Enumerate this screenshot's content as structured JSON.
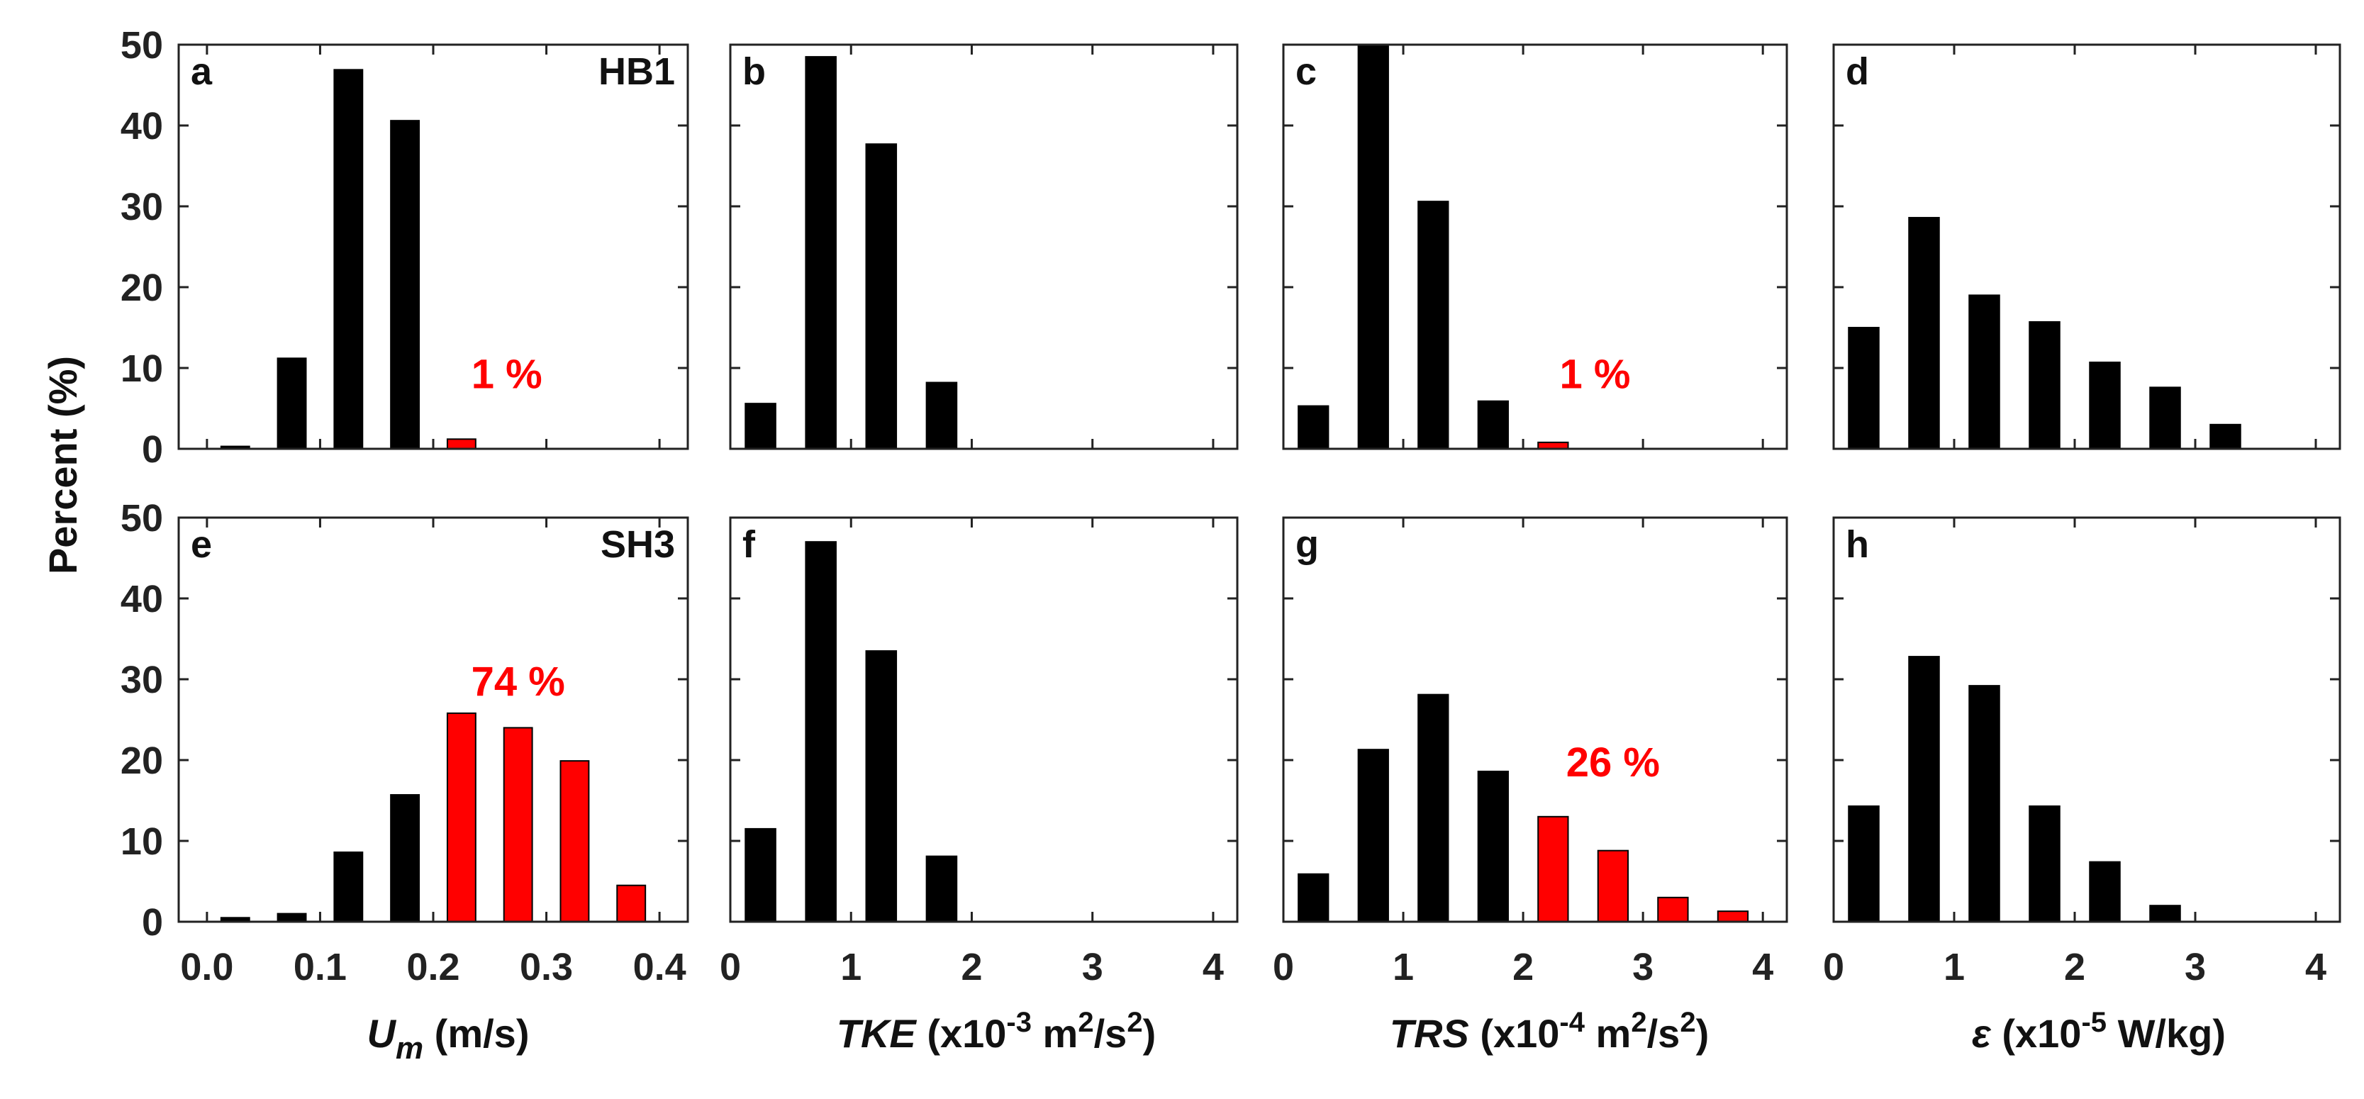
{
  "figure": {
    "ylabel": "Percent (%)",
    "colors": {
      "default_bar": "#000000",
      "highlight_bar": "#ff0000",
      "annotation": "#ff0000",
      "axis": "#222222"
    },
    "xlabels": [
      {
        "prefix_italic": "U",
        "sub_italic": "m",
        "rest": " (m/s)"
      },
      {
        "italic": "TKE",
        "rest1": " (x10",
        "sup1": "-3",
        "rest2": " m",
        "sup2": "2",
        "rest3": "/s",
        "sup3": "2",
        "rest4": ")"
      },
      {
        "italic": "TRS",
        "rest1": " (x10",
        "sup1": "-4",
        "rest2": " m",
        "sup2": "2",
        "rest3": "/s",
        "sup3": "2",
        "rest4": ")"
      },
      {
        "italic": "ε",
        "rest1": " (x10",
        "sup1": "-5",
        "rest2": " W/kg)"
      }
    ]
  },
  "chart_data": [
    {
      "panel": "a",
      "site": "HB1",
      "type": "bar",
      "xlim": [
        -0.025,
        0.425
      ],
      "ylim": [
        0,
        50
      ],
      "xticks": [
        0.0,
        0.1,
        0.2,
        0.3,
        0.4
      ],
      "xtick_labels": [
        "0.0",
        "0.1",
        "0.2",
        "0.3",
        "0.4"
      ],
      "yticks": [
        0,
        10,
        20,
        30,
        40,
        50
      ],
      "ytick_labels": [
        "0",
        "10",
        "20",
        "30",
        "40",
        "50"
      ],
      "bar_width": 0.025,
      "x": [
        0.025,
        0.075,
        0.125,
        0.175,
        0.225,
        0.275,
        0.325,
        0.375
      ],
      "values": [
        0.3,
        11.2,
        46.9,
        40.6,
        1.2,
        0,
        0,
        0
      ],
      "highlight": [
        false,
        false,
        false,
        false,
        true,
        false,
        false,
        false
      ],
      "annotation": {
        "text": "1 %",
        "x": 0.265,
        "y": 7.5
      }
    },
    {
      "panel": "b",
      "site": "",
      "type": "bar",
      "xlim": [
        0,
        4.2
      ],
      "ylim": [
        0,
        50
      ],
      "xticks": [
        0,
        1,
        2,
        3,
        4
      ],
      "xtick_labels": [
        "0",
        "1",
        "2",
        "3",
        "4"
      ],
      "yticks": [
        0,
        10,
        20,
        30,
        40,
        50
      ],
      "ytick_labels": [],
      "bar_width": 0.25,
      "x": [
        0.25,
        0.75,
        1.25,
        1.75,
        2.25,
        2.75,
        3.25,
        3.75
      ],
      "values": [
        5.6,
        48.5,
        37.7,
        8.2,
        0,
        0,
        0,
        0
      ],
      "highlight": [
        false,
        false,
        false,
        false,
        false,
        false,
        false,
        false
      ],
      "annotation": null
    },
    {
      "panel": "c",
      "site": "",
      "type": "bar",
      "xlim": [
        0,
        4.2
      ],
      "ylim": [
        0,
        50
      ],
      "xticks": [
        0,
        1,
        2,
        3,
        4
      ],
      "xtick_labels": [
        "0",
        "1",
        "2",
        "3",
        "4"
      ],
      "yticks": [
        0,
        10,
        20,
        30,
        40,
        50
      ],
      "ytick_labels": [],
      "bar_width": 0.25,
      "x": [
        0.25,
        0.75,
        1.25,
        1.75,
        2.25,
        2.75,
        3.25,
        3.75
      ],
      "values": [
        5.3,
        50,
        30.6,
        5.9,
        0.8,
        0,
        0,
        0
      ],
      "highlight": [
        false,
        false,
        false,
        false,
        true,
        false,
        false,
        false
      ],
      "annotation": {
        "text": "1 %",
        "x": 2.6,
        "y": 7.5
      }
    },
    {
      "panel": "d",
      "site": "",
      "type": "bar",
      "xlim": [
        0,
        4.2
      ],
      "ylim": [
        0,
        50
      ],
      "xticks": [
        0,
        1,
        2,
        3,
        4
      ],
      "xtick_labels": [
        "0",
        "1",
        "2",
        "3",
        "4"
      ],
      "yticks": [
        0,
        10,
        20,
        30,
        40,
        50
      ],
      "ytick_labels": [],
      "bar_width": 0.25,
      "x": [
        0.25,
        0.75,
        1.25,
        1.75,
        2.25,
        2.75,
        3.25,
        3.75
      ],
      "values": [
        15,
        28.6,
        19,
        15.7,
        10.7,
        7.6,
        3,
        0
      ],
      "highlight": [
        false,
        false,
        false,
        false,
        false,
        false,
        false,
        false
      ],
      "annotation": null
    },
    {
      "panel": "e",
      "site": "SH3",
      "type": "bar",
      "xlim": [
        -0.025,
        0.425
      ],
      "ylim": [
        0,
        50
      ],
      "xticks": [
        0.0,
        0.1,
        0.2,
        0.3,
        0.4
      ],
      "xtick_labels": [
        "0.0",
        "0.1",
        "0.2",
        "0.3",
        "0.4"
      ],
      "yticks": [
        0,
        10,
        20,
        30,
        40,
        50
      ],
      "ytick_labels": [
        "0",
        "10",
        "20",
        "30",
        "40",
        "50"
      ],
      "bar_width": 0.025,
      "x": [
        0.025,
        0.075,
        0.125,
        0.175,
        0.225,
        0.275,
        0.325,
        0.375
      ],
      "values": [
        0.5,
        1,
        8.6,
        15.7,
        25.8,
        24,
        19.9,
        4.5
      ],
      "highlight": [
        false,
        false,
        false,
        false,
        true,
        true,
        true,
        true
      ],
      "annotation": {
        "text": "74 %",
        "x": 0.275,
        "y": 28
      }
    },
    {
      "panel": "f",
      "site": "",
      "type": "bar",
      "xlim": [
        0,
        4.2
      ],
      "ylim": [
        0,
        50
      ],
      "xticks": [
        0,
        1,
        2,
        3,
        4
      ],
      "xtick_labels": [
        "0",
        "1",
        "2",
        "3",
        "4"
      ],
      "yticks": [
        0,
        10,
        20,
        30,
        40,
        50
      ],
      "ytick_labels": [],
      "bar_width": 0.25,
      "x": [
        0.25,
        0.75,
        1.25,
        1.75,
        2.25,
        2.75,
        3.25,
        3.75
      ],
      "values": [
        11.5,
        47,
        33.5,
        8.1,
        0,
        0,
        0,
        0
      ],
      "highlight": [
        false,
        false,
        false,
        false,
        false,
        false,
        false,
        false
      ],
      "annotation": null
    },
    {
      "panel": "g",
      "site": "",
      "type": "bar",
      "xlim": [
        0,
        4.2
      ],
      "ylim": [
        0,
        50
      ],
      "xticks": [
        0,
        1,
        2,
        3,
        4
      ],
      "xtick_labels": [
        "0",
        "1",
        "2",
        "3",
        "4"
      ],
      "yticks": [
        0,
        10,
        20,
        30,
        40,
        50
      ],
      "ytick_labels": [],
      "bar_width": 0.25,
      "x": [
        0.25,
        0.75,
        1.25,
        1.75,
        2.25,
        2.75,
        3.25,
        3.75
      ],
      "values": [
        5.9,
        21.3,
        28.1,
        18.6,
        13,
        8.8,
        3,
        1.3
      ],
      "highlight": [
        false,
        false,
        false,
        false,
        true,
        true,
        true,
        true
      ],
      "annotation": {
        "text": "26 %",
        "x": 2.75,
        "y": 18
      }
    },
    {
      "panel": "h",
      "site": "",
      "type": "bar",
      "xlim": [
        0,
        4.2
      ],
      "ylim": [
        0,
        50
      ],
      "xticks": [
        0,
        1,
        2,
        3,
        4
      ],
      "xtick_labels": [
        "0",
        "1",
        "2",
        "3",
        "4"
      ],
      "yticks": [
        0,
        10,
        20,
        30,
        40,
        50
      ],
      "ytick_labels": [],
      "bar_width": 0.25,
      "x": [
        0.25,
        0.75,
        1.25,
        1.75,
        2.25,
        2.75,
        3.25,
        3.75
      ],
      "values": [
        14.3,
        32.8,
        29.2,
        14.3,
        7.4,
        2,
        0,
        0
      ],
      "highlight": [
        false,
        false,
        false,
        false,
        false,
        false,
        false,
        false
      ],
      "annotation": null
    }
  ]
}
